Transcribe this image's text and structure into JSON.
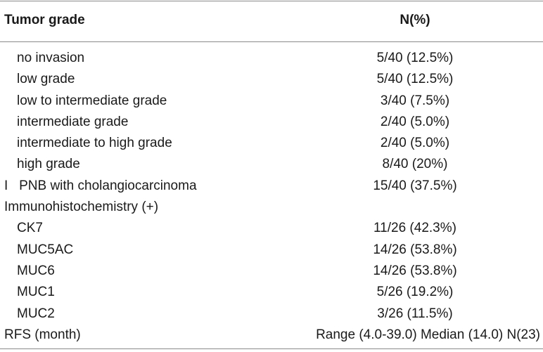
{
  "header": {
    "col1": "Tumor grade",
    "col2": "N(%)"
  },
  "rows": [
    {
      "label": "no invasion",
      "value": "5/40 (12.5%)"
    },
    {
      "label": "low grade",
      "value": "5/40 (12.5%)"
    },
    {
      "label": "low to intermediate grade",
      "value": "3/40 (7.5%)"
    },
    {
      "label": "intermediate grade",
      "value": "2/40 (5.0%)"
    },
    {
      "label": "intermediate to high grade",
      "value": "2/40 (5.0%)"
    },
    {
      "label": "high grade",
      "value": "8/40 (20%)"
    },
    {
      "label": "I   PNB with cholangiocarcinoma",
      "value": "15/40 (37.5%)"
    },
    {
      "label": "Immunohistochemistry (+)",
      "value": ""
    },
    {
      "label": "CK7",
      "value": "11/26 (42.3%)"
    },
    {
      "label": "MUC5AC",
      "value": "14/26 (53.8%)"
    },
    {
      "label": "MUC6",
      "value": "14/26 (53.8%)"
    },
    {
      "label": "MUC1",
      "value": "5/26 (19.2%)"
    },
    {
      "label": "MUC2",
      "value": "3/26 (11.5%)"
    },
    {
      "label": "RFS (month)",
      "value": "Range (4.0-39.0) Median (14.0) N(23)"
    }
  ]
}
